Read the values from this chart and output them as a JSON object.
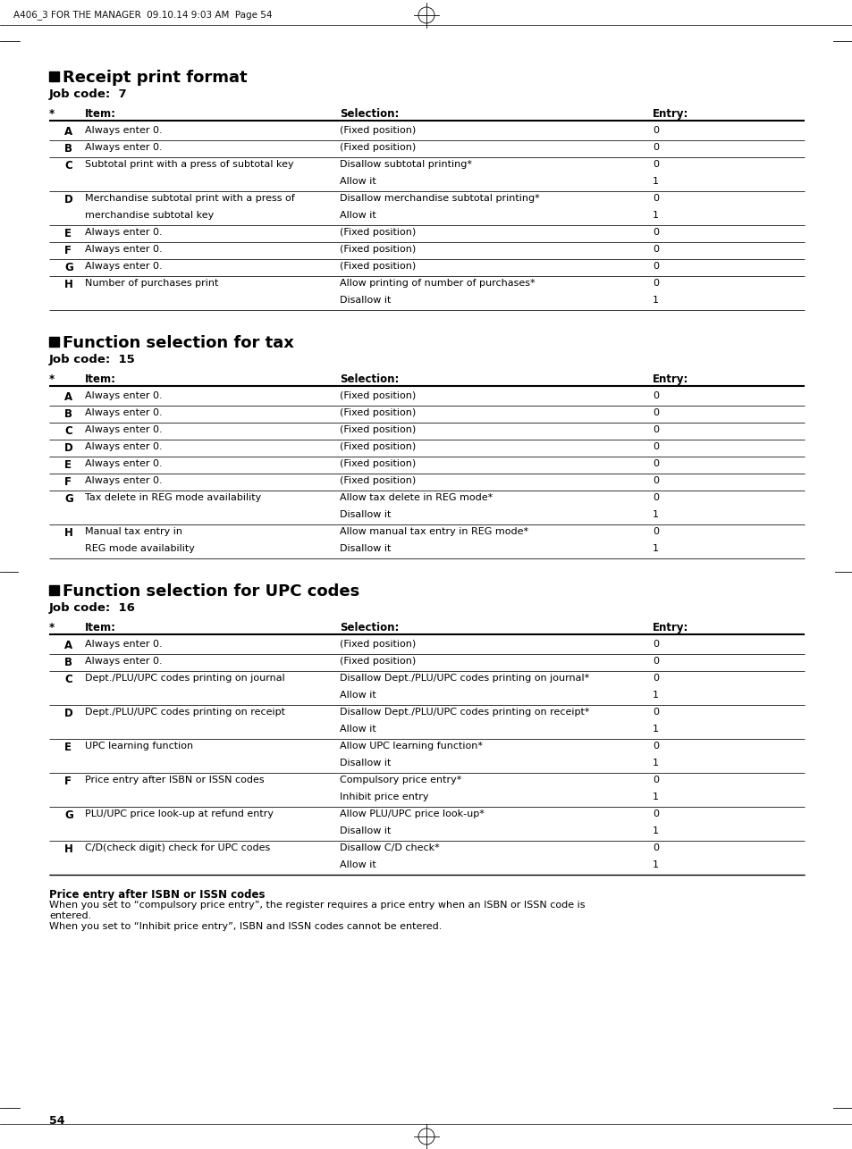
{
  "header_text": "A406_3 FOR THE MANAGER  09.10.14 9:03 AM  Page 54",
  "page_number": "54",
  "background_color": "#ffffff",
  "section1_title": "Receipt print format",
  "section1_jobcode": "Job code:  7",
  "section2_title": "Function selection for tax",
  "section2_jobcode": "Job code:  15",
  "section3_title": "Function selection for UPC codes",
  "section3_jobcode": "Job code:  16",
  "col_header_star": "*",
  "col_header_item": "Item:",
  "col_header_sel": "Selection:",
  "col_header_entry": "Entry:",
  "footnote_title": "Price entry after ISBN or ISSN codes",
  "footnote_line1": "When you set to “compulsory price entry”, the register requires a price entry when an ISBN or ISSN code is",
  "footnote_line1b": "entered.",
  "footnote_line2": "When you set to “Inhibit price entry”, ISBN and ISSN codes cannot be entered.",
  "s1_rows": [
    [
      "A",
      "Always enter 0.",
      "(Fixed position)",
      "0",
      ""
    ],
    [
      "B",
      "Always enter 0.",
      "(Fixed position)",
      "0",
      ""
    ],
    [
      "C",
      "Subtotal print with a press of subtotal key",
      "Disallow subtotal printing*",
      "0",
      "Allow it|1"
    ],
    [
      "D",
      "Merchandise subtotal print with a press of|merchandise subtotal key",
      "Disallow merchandise subtotal printing*",
      "0",
      "Allow it|1"
    ],
    [
      "E",
      "Always enter 0.",
      "(Fixed position)",
      "0",
      ""
    ],
    [
      "F",
      "Always enter 0.",
      "(Fixed position)",
      "0",
      ""
    ],
    [
      "G",
      "Always enter 0.",
      "(Fixed position)",
      "0",
      ""
    ],
    [
      "H",
      "Number of purchases print",
      "Allow printing of number of purchases*",
      "0",
      "Disallow it|1"
    ]
  ],
  "s2_rows": [
    [
      "A",
      "Always enter 0.",
      "(Fixed position)",
      "0",
      ""
    ],
    [
      "B",
      "Always enter 0.",
      "(Fixed position)",
      "0",
      ""
    ],
    [
      "C",
      "Always enter 0.",
      "(Fixed position)",
      "0",
      ""
    ],
    [
      "D",
      "Always enter 0.",
      "(Fixed position)",
      "0",
      ""
    ],
    [
      "E",
      "Always enter 0.",
      "(Fixed position)",
      "0",
      ""
    ],
    [
      "F",
      "Always enter 0.",
      "(Fixed position)",
      "0",
      ""
    ],
    [
      "G",
      "Tax delete in REG mode availability",
      "Allow tax delete in REG mode*",
      "0",
      "Disallow it|1"
    ],
    [
      "H",
      "Manual tax entry in|REG mode availability",
      "Allow manual tax entry in REG mode*",
      "0",
      "Disallow it|1"
    ]
  ],
  "s3_rows": [
    [
      "A",
      "Always enter 0.",
      "(Fixed position)",
      "0",
      ""
    ],
    [
      "B",
      "Always enter 0.",
      "(Fixed position)",
      "0",
      ""
    ],
    [
      "C",
      "Dept./PLU/UPC codes printing on journal",
      "Disallow Dept./PLU/UPC codes printing on journal*",
      "0",
      "Allow it|1"
    ],
    [
      "D",
      "Dept./PLU/UPC codes printing on receipt",
      "Disallow Dept./PLU/UPC codes printing on receipt*",
      "0",
      "Allow it|1"
    ],
    [
      "E",
      "UPC learning function",
      "Allow UPC learning function*",
      "0",
      "Disallow it|1"
    ],
    [
      "F",
      "Price entry after ISBN or ISSN codes",
      "Compulsory price entry*",
      "0",
      "Inhibit price entry|1"
    ],
    [
      "G",
      "PLU/UPC price look-up at refund entry",
      "Allow PLU/UPC price look-up*",
      "0",
      "Disallow it|1"
    ],
    [
      "H",
      "C/D(check digit) check for UPC codes",
      "Disallow C/D check*",
      "0",
      "Allow it|1"
    ]
  ]
}
